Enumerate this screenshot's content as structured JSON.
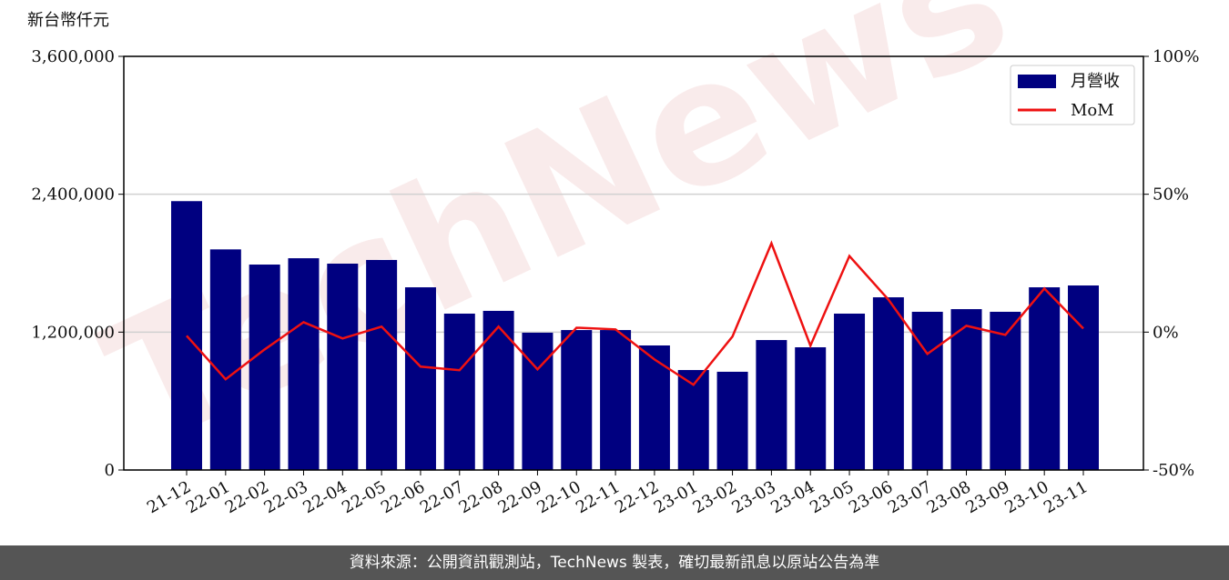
{
  "chart_data": {
    "type": "bar-line",
    "y_label": "新台幣仟元",
    "watermark": "TechNews",
    "footer": "資料來源：公開資訊觀測站，TechNews 製表，確切最新訊息以原站公告為準",
    "categories": [
      "21-12",
      "22-01",
      "22-02",
      "22-03",
      "22-04",
      "22-05",
      "22-06",
      "22-07",
      "22-08",
      "22-09",
      "22-10",
      "22-11",
      "22-12",
      "23-01",
      "23-02",
      "23-03",
      "23-04",
      "23-05",
      "23-06",
      "23-07",
      "23-08",
      "23-09",
      "23-10",
      "23-11"
    ],
    "series": [
      {
        "name": "月營收",
        "type": "bar",
        "color": "#000080",
        "values": [
          2340000,
          1920000,
          1788000,
          1843000,
          1796000,
          1828000,
          1590000,
          1361000,
          1385000,
          1195000,
          1218000,
          1218000,
          1084000,
          870000,
          855000,
          1131000,
          1068000,
          1361000,
          1503000,
          1377000,
          1400000,
          1377000,
          1590000,
          1606000
        ]
      },
      {
        "name": "MoM",
        "type": "line",
        "color": "#ee1111",
        "axis": "y2",
        "values": [
          -1.3,
          -17.1,
          -6.3,
          3.6,
          -2.3,
          2.0,
          -12.5,
          -13.8,
          2.0,
          -13.5,
          1.6,
          1.0,
          -9.9,
          -19.1,
          -1.6,
          32.2,
          -4.9,
          27.6,
          11.8,
          -7.9,
          2.3,
          -1.0,
          15.8,
          1.3
        ]
      }
    ],
    "ylim": [
      0,
      3600000
    ],
    "yticks": [
      0,
      {
        "value": 1200000,
        "label": "1,200,000"
      },
      {
        "value": 2400000,
        "label": "2,400,000"
      },
      {
        "value": 3600000,
        "label": "3,600,000"
      }
    ],
    "y2lim": [
      -50,
      100
    ],
    "y2ticks": [
      {
        "value": -50,
        "label": "-50%"
      },
      {
        "value": 0,
        "label": "0%"
      },
      {
        "value": 50,
        "label": "50%"
      },
      {
        "value": 100,
        "label": "100%"
      }
    ],
    "grid": true,
    "legend": "upper right"
  }
}
